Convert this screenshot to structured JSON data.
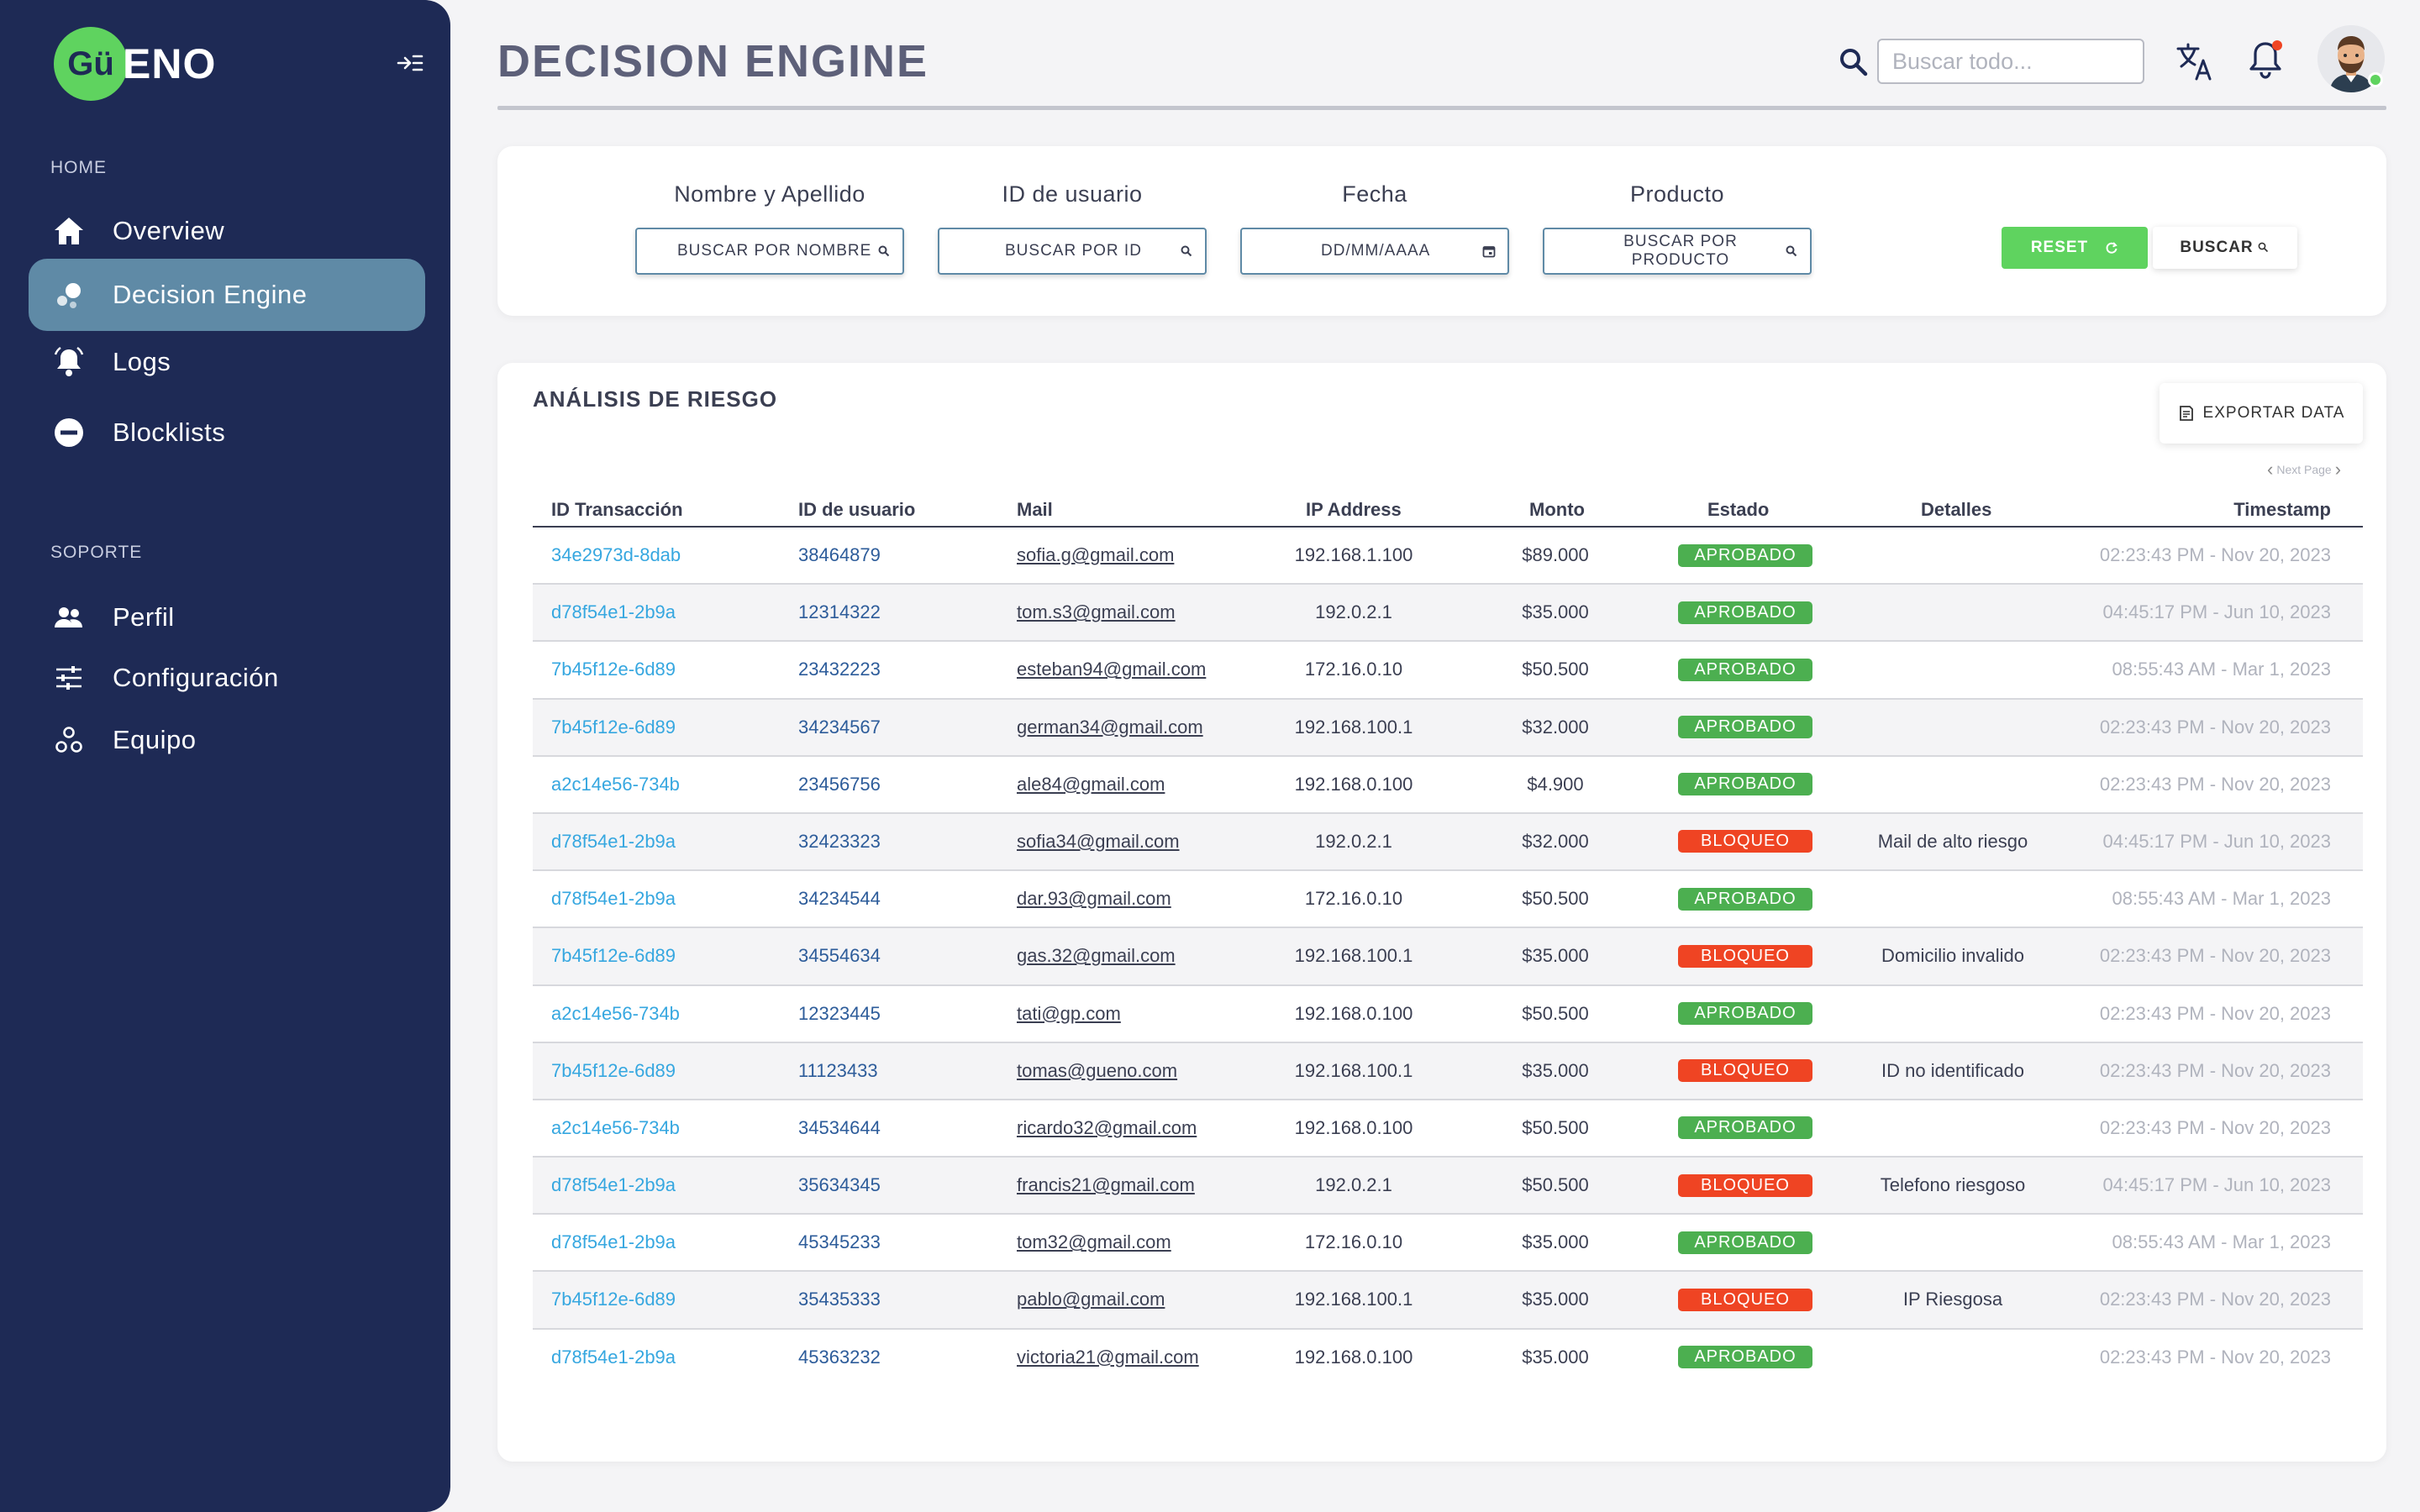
{
  "brand": {
    "logo_circle": "Gü",
    "logo_rest": "ENO"
  },
  "sidebar": {
    "home_label": "HOME",
    "support_label": "SOPORTE",
    "items": [
      {
        "label": "Overview",
        "icon": "home-icon"
      },
      {
        "label": "Decision Engine",
        "icon": "decision-engine-icon",
        "active": true
      },
      {
        "label": "Logs",
        "icon": "bell-ring-icon"
      },
      {
        "label": "Blocklists",
        "icon": "minus-circle-icon"
      }
    ],
    "support_items": [
      {
        "label": "Perfil",
        "icon": "people-icon"
      },
      {
        "label": "Configuración",
        "icon": "sliders-icon"
      },
      {
        "label": "Equipo",
        "icon": "team-icon"
      }
    ]
  },
  "header": {
    "title": "DECISION ENGINE",
    "search_placeholder": "Buscar todo..."
  },
  "filters": {
    "name": {
      "label": "Nombre y Apellido",
      "placeholder": "BUSCAR POR NOMBRE"
    },
    "user_id": {
      "label": "ID de usuario",
      "placeholder": "BUSCAR POR ID"
    },
    "date": {
      "label": "Fecha",
      "placeholder": "DD/MM/AAAA"
    },
    "product": {
      "label": "Producto",
      "placeholder": "BUSCAR POR PRODUCTO"
    },
    "reset_label": "RESET",
    "search_label": "BUSCAR"
  },
  "table": {
    "heading": "ANÁLISIS DE RIESGO",
    "export_label": "EXPORTAR DATA",
    "pager_label": "Next Page",
    "columns": {
      "tx": "ID Transacción",
      "uid": "ID de usuario",
      "mail": "Mail",
      "ip": "IP Address",
      "monto": "Monto",
      "estado": "Estado",
      "detalles": "Detalles",
      "ts": "Timestamp"
    },
    "rows": [
      {
        "tx": "34e2973d-8dab",
        "uid": "38464879",
        "mail": "sofia.g@gmail.com",
        "ip": "192.168.1.100",
        "monto": "$89.000",
        "estado": "APROBADO",
        "status": "ok",
        "detalles": "",
        "ts": "02:23:43 PM - Nov 20, 2023"
      },
      {
        "tx": "d78f54e1-2b9a",
        "uid": "12314322",
        "mail": "tom.s3@gmail.com",
        "ip": "192.0.2.1",
        "monto": "$35.000",
        "estado": "APROBADO",
        "status": "ok",
        "detalles": "",
        "ts": "04:45:17 PM - Jun 10, 2023"
      },
      {
        "tx": "7b45f12e-6d89",
        "uid": "23432223",
        "mail": "esteban94@gmail.com",
        "ip": "172.16.0.10",
        "monto": "$50.500",
        "estado": "APROBADO",
        "status": "ok",
        "detalles": "",
        "ts": "08:55:43 AM - Mar 1, 2023"
      },
      {
        "tx": "7b45f12e-6d89",
        "uid": "34234567",
        "mail": "german34@gmail.com",
        "ip": "192.168.100.1",
        "monto": "$32.000",
        "estado": "APROBADO",
        "status": "ok",
        "detalles": "",
        "ts": "02:23:43 PM - Nov 20, 2023"
      },
      {
        "tx": "a2c14e56-734b",
        "uid": "23456756",
        "mail": "ale84@gmail.com",
        "ip": "192.168.0.100",
        "monto": "$4.900",
        "estado": "APROBADO",
        "status": "ok",
        "detalles": "",
        "ts": "02:23:43 PM - Nov 20, 2023"
      },
      {
        "tx": "d78f54e1-2b9a",
        "uid": "32423323",
        "mail": "sofia34@gmail.com",
        "ip": "192.0.2.1",
        "monto": "$32.000",
        "estado": "BLOQUEO",
        "status": "bad",
        "detalles": "Mail de alto riesgo",
        "ts": "04:45:17 PM - Jun 10, 2023"
      },
      {
        "tx": "d78f54e1-2b9a",
        "uid": "34234544",
        "mail": "dar.93@gmail.com",
        "ip": "172.16.0.10",
        "monto": "$50.500",
        "estado": "APROBADO",
        "status": "ok",
        "detalles": "",
        "ts": "08:55:43 AM - Mar 1, 2023"
      },
      {
        "tx": "7b45f12e-6d89",
        "uid": "34554634",
        "mail": "gas.32@gmail.com",
        "ip": "192.168.100.1",
        "monto": "$35.000",
        "estado": "BLOQUEO",
        "status": "bad",
        "detalles": "Domicilio invalido",
        "ts": "02:23:43 PM - Nov 20, 2023"
      },
      {
        "tx": "a2c14e56-734b",
        "uid": "12323445",
        "mail": "tati@gp.com",
        "ip": "192.168.0.100",
        "monto": "$50.500",
        "estado": "APROBADO",
        "status": "ok",
        "detalles": "",
        "ts": "02:23:43 PM - Nov 20, 2023"
      },
      {
        "tx": "7b45f12e-6d89",
        "uid": "11123433",
        "mail": "tomas@gueno.com",
        "ip": "192.168.100.1",
        "monto": "$35.000",
        "estado": "BLOQUEO",
        "status": "bad",
        "detalles": "ID no identificado",
        "ts": "02:23:43 PM - Nov 20, 2023"
      },
      {
        "tx": "a2c14e56-734b",
        "uid": "34534644",
        "mail": "ricardo32@gmail.com",
        "ip": "192.168.0.100",
        "monto": "$50.500",
        "estado": "APROBADO",
        "status": "ok",
        "detalles": "",
        "ts": "02:23:43 PM - Nov 20, 2023"
      },
      {
        "tx": "d78f54e1-2b9a",
        "uid": "35634345",
        "mail": "francis21@gmail.com",
        "ip": "192.0.2.1",
        "monto": "$50.500",
        "estado": "BLOQUEO",
        "status": "bad",
        "detalles": "Telefono riesgoso",
        "ts": "04:45:17 PM - Jun 10, 2023"
      },
      {
        "tx": "d78f54e1-2b9a",
        "uid": "45345233",
        "mail": "tom32@gmail.com",
        "ip": "172.16.0.10",
        "monto": "$35.000",
        "estado": "APROBADO",
        "status": "ok",
        "detalles": "",
        "ts": "08:55:43 AM - Mar 1, 2023"
      },
      {
        "tx": "7b45f12e-6d89",
        "uid": "35435333",
        "mail": "pablo@gmail.com",
        "ip": "192.168.100.1",
        "monto": "$35.000",
        "estado": "BLOQUEO",
        "status": "bad",
        "detalles": "IP Riesgosa",
        "ts": "02:23:43 PM - Nov 20, 2023"
      },
      {
        "tx": "d78f54e1-2b9a",
        "uid": "45363232",
        "mail": "victoria21@gmail.com",
        "ip": "192.168.0.100",
        "monto": "$35.000",
        "estado": "APROBADO",
        "status": "ok",
        "detalles": "",
        "ts": "02:23:43 PM - Nov 20, 2023"
      }
    ]
  },
  "colors": {
    "sidebar_bg": "#1e2a55",
    "active_item": "#5f8aa6",
    "brand_green": "#5fd35f",
    "approved": "#4caf50",
    "blocked": "#ef4423",
    "link": "#36a7e0"
  }
}
